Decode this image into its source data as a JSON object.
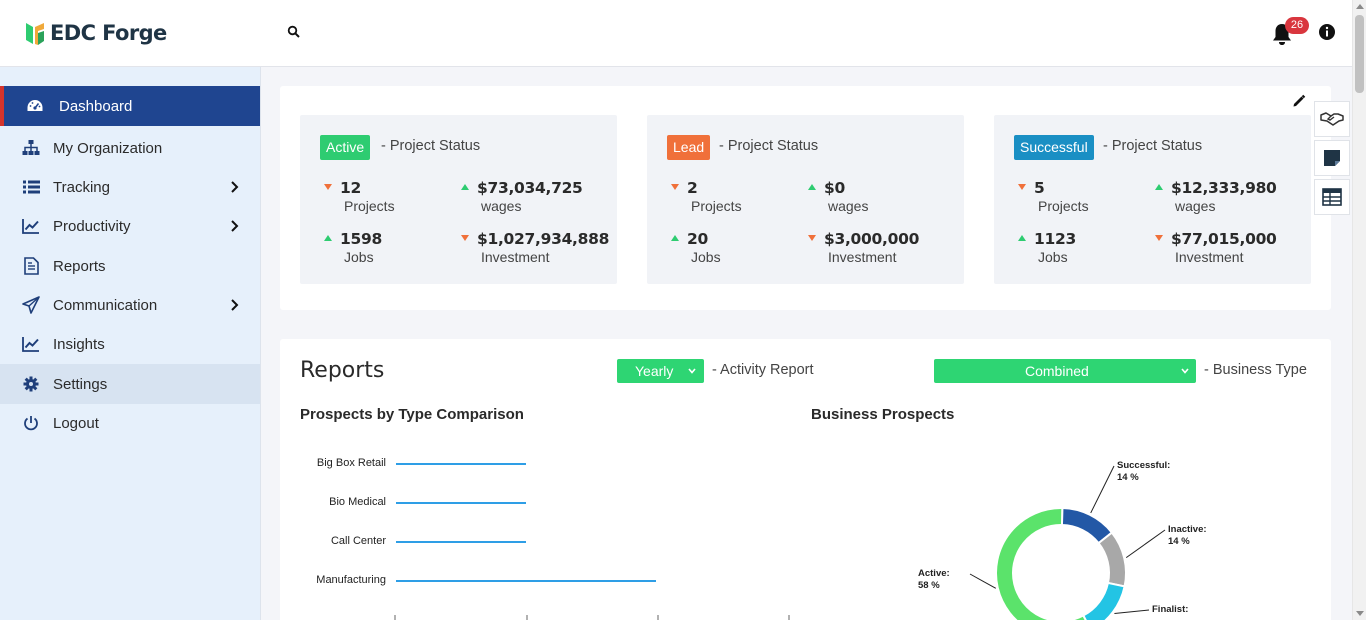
{
  "app": {
    "logo_text": "EDC Forge",
    "notification_count": "26"
  },
  "sidebar": {
    "items": [
      {
        "label": "Dashboard",
        "icon": "dashboard-gauge-icon"
      },
      {
        "label": "My Organization",
        "icon": "org-chart-icon"
      },
      {
        "label": "Tracking",
        "icon": "list-icon"
      },
      {
        "label": "Productivity",
        "icon": "line-chart-icon"
      },
      {
        "label": "Reports",
        "icon": "document-icon"
      },
      {
        "label": "Communication",
        "icon": "paper-plane-icon"
      },
      {
        "label": "Insights",
        "icon": "line-chart-icon"
      },
      {
        "label": "Settings",
        "icon": "gear-icon"
      },
      {
        "label": "Logout",
        "icon": "power-icon"
      }
    ]
  },
  "status_cards": [
    {
      "badge": "Active",
      "badge_color": "#2ecc71",
      "label": "- Project Status",
      "projects_value": "12",
      "projects_label": "Projects",
      "wages_value": "$73,034,725",
      "wages_label": "wages",
      "jobs_value": "1598",
      "jobs_label": "Jobs",
      "investment_value": "$1,027,934,888",
      "investment_label": "Investment"
    },
    {
      "badge": "Lead",
      "badge_color": "#f0703a",
      "label": "- Project Status",
      "projects_value": "2",
      "projects_label": "Projects",
      "wages_value": "$0",
      "wages_label": "wages",
      "jobs_value": "20",
      "jobs_label": "Jobs",
      "investment_value": "$3,000,000",
      "investment_label": "Investment"
    },
    {
      "badge": "Successful",
      "badge_color": "#1a8fc4",
      "label": "- Project Status",
      "projects_value": "5",
      "projects_label": "Projects",
      "wages_value": "$12,333,980",
      "wages_label": "wages",
      "jobs_value": "1123",
      "jobs_label": "Jobs",
      "investment_value": "$77,015,000",
      "investment_label": "Investment"
    }
  ],
  "reports": {
    "title": "Reports",
    "period_select": "Yearly",
    "period_suffix": "- Activity Report",
    "business_select": "Combined",
    "business_suffix": "- Business Type",
    "left_chart_title": "Prospects by Type Comparison",
    "right_chart_title": "Business Prospects"
  },
  "chart_data": [
    {
      "type": "bar",
      "title": "Prospects by Type Comparison",
      "orientation": "horizontal",
      "categories": [
        "Big Box Retail",
        "Bio Medical",
        "Call Center",
        "Manufacturing"
      ],
      "values": [
        1,
        1,
        1,
        2
      ],
      "color": "#2e9ee6"
    },
    {
      "type": "pie",
      "title": "Business Prospects",
      "donut": true,
      "labels": [
        "Successful:",
        "Inactive:",
        "Finalist:",
        "Active:"
      ],
      "values": [
        14,
        14,
        14,
        58
      ],
      "value_labels": [
        "14 %",
        "14 %",
        "",
        "58 %"
      ],
      "colors": [
        "#2358a6",
        "#a8a8a8",
        "#23c4e4",
        "#5be36b"
      ]
    }
  ]
}
